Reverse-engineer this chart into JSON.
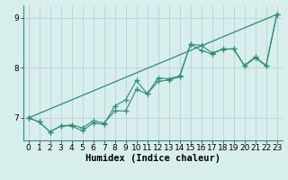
{
  "xlabel": "Humidex (Indice chaleur)",
  "background_color": "#d8eeed",
  "grid_color": "#b8d8d8",
  "line_color": "#2e8b77",
  "xlim": [
    -0.5,
    23.5
  ],
  "ylim": [
    6.55,
    9.25
  ],
  "yticks": [
    7,
    8,
    9
  ],
  "xticks": [
    0,
    1,
    2,
    3,
    4,
    5,
    6,
    7,
    8,
    9,
    10,
    11,
    12,
    13,
    14,
    15,
    16,
    17,
    18,
    19,
    20,
    21,
    22,
    23
  ],
  "line1_x": [
    0,
    1,
    2,
    3,
    4,
    5,
    6,
    7,
    8,
    9,
    10,
    11,
    12,
    13,
    14,
    15,
    16,
    17,
    18,
    19,
    20,
    21,
    22,
    23
  ],
  "line1_y": [
    7.0,
    6.92,
    6.72,
    6.84,
    6.86,
    6.8,
    6.94,
    6.9,
    7.14,
    7.14,
    7.57,
    7.48,
    7.73,
    7.76,
    7.82,
    8.47,
    8.45,
    8.3,
    8.37,
    8.38,
    8.04,
    8.2,
    8.04,
    9.07
  ],
  "line2_x": [
    0,
    23
  ],
  "line2_y": [
    7.0,
    9.07
  ],
  "line3_x": [
    0,
    1,
    2,
    3,
    4,
    5,
    6,
    7,
    8,
    9,
    10,
    11,
    12,
    13,
    14,
    15,
    16,
    17,
    18,
    19,
    20,
    21,
    22,
    23
  ],
  "line3_y": [
    7.0,
    6.92,
    6.72,
    6.84,
    6.84,
    6.74,
    6.9,
    6.87,
    7.24,
    7.36,
    7.75,
    7.48,
    7.8,
    7.78,
    7.84,
    8.47,
    8.35,
    8.28,
    8.38,
    8.38,
    8.05,
    8.22,
    8.05,
    9.07
  ],
  "marker_size": 2.5,
  "xlabel_fontsize": 7.5,
  "tick_fontsize": 6.5
}
